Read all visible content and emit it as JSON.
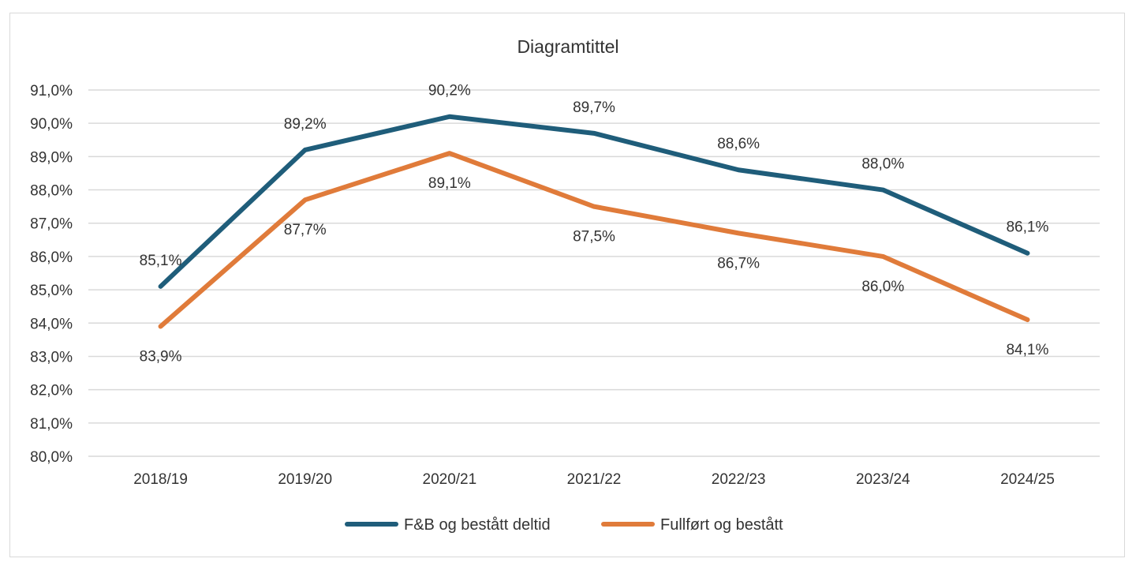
{
  "chart_data": {
    "type": "line",
    "title": "Diagramtittel",
    "categories": [
      "2018/19",
      "2019/20",
      "2020/21",
      "2021/22",
      "2022/23",
      "2023/24",
      "2024/25"
    ],
    "y_ticks": [
      "80,0%",
      "81,0%",
      "82,0%",
      "83,0%",
      "84,0%",
      "85,0%",
      "86,0%",
      "87,0%",
      "88,0%",
      "89,0%",
      "90,0%",
      "91,0%"
    ],
    "ylim": [
      80,
      91
    ],
    "grid": true,
    "legend_position": "bottom",
    "series": [
      {
        "name": "F&B og bestått deltid",
        "color": "#1f5d7a",
        "values": [
          85.1,
          89.2,
          90.2,
          89.7,
          88.6,
          88.0,
          86.1
        ],
        "labels": [
          "85,1%",
          "89,2%",
          "90,2%",
          "89,7%",
          "88,6%",
          "88,0%",
          "86,1%"
        ],
        "label_position": "above"
      },
      {
        "name": "Fullført og bestått",
        "color": "#e07b3a",
        "values": [
          83.9,
          87.7,
          89.1,
          87.5,
          86.7,
          86.0,
          84.1
        ],
        "labels": [
          "83,9%",
          "87,7%",
          "89,1%",
          "87,5%",
          "86,7%",
          "86,0%",
          "84,1%"
        ],
        "label_position": "below"
      }
    ]
  }
}
